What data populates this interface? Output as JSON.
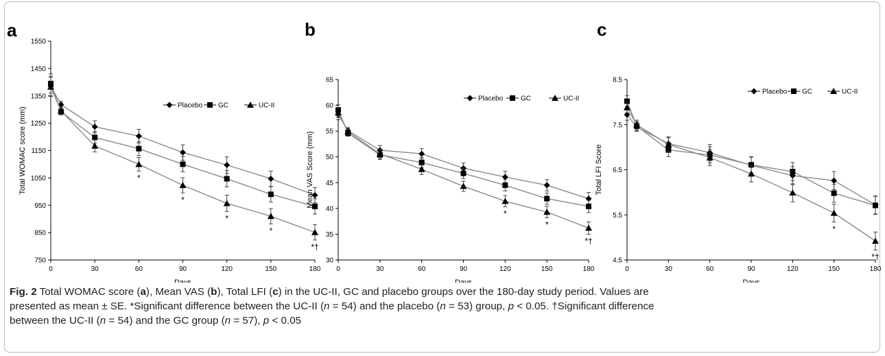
{
  "figure": {
    "caption_lines": [
      [
        "Fig. 2",
        " Total WOMAC score (",
        "a",
        "), Mean VAS (",
        "b",
        "), Total LFI (",
        "c",
        ") in the UC-II, GC and placebo groups over the 180-day study period. Values are"
      ],
      [
        "presented as mean ± SE. *Significant difference between the UC-II (",
        "n",
        " = 54) and the placebo (",
        "n",
        " = 53) group, ",
        "p",
        " < 0.05. †Significant difference"
      ],
      [
        "between the UC-II (",
        "n",
        " = 54) and the GC group (",
        "n",
        " = 57), ",
        "p",
        " < 0.05"
      ]
    ]
  },
  "chart_data": [
    {
      "panel_label": "a",
      "type": "line",
      "xlabel": "Days",
      "ylabel": "Total WOMAC score (mm)",
      "x": [
        0,
        7,
        30,
        60,
        90,
        120,
        150,
        180
      ],
      "xticks": [
        0,
        30,
        60,
        90,
        120,
        150,
        180
      ],
      "yticks": [
        750,
        850,
        950,
        1050,
        1150,
        1250,
        1350,
        1450,
        1550
      ],
      "ylim": [
        750,
        1550
      ],
      "legend_position": "top-right",
      "series": [
        {
          "name": "Placebo",
          "marker": "diamond",
          "values": [
            1385,
            1318,
            1237,
            1203,
            1143,
            1097,
            1047,
            987
          ],
          "errors": [
            35,
            12,
            22,
            25,
            28,
            30,
            28,
            28
          ]
        },
        {
          "name": "GC",
          "marker": "square",
          "values": [
            1395,
            1292,
            1198,
            1157,
            1100,
            1047,
            990,
            946
          ],
          "errors": [
            35,
            12,
            22,
            25,
            28,
            30,
            28,
            28
          ]
        },
        {
          "name": "UC-II",
          "marker": "triangle",
          "values": [
            1383,
            1295,
            1167,
            1100,
            1023,
            957,
            910,
            851
          ],
          "errors": [
            35,
            12,
            22,
            25,
            28,
            30,
            28,
            28
          ]
        }
      ],
      "annotations": [
        {
          "x": 60,
          "text": "*"
        },
        {
          "x": 90,
          "text": "*"
        },
        {
          "x": 120,
          "text": "*"
        },
        {
          "x": 150,
          "text": "*"
        },
        {
          "x": 180,
          "text": "*†"
        }
      ]
    },
    {
      "panel_label": "b",
      "type": "line",
      "xlabel": "Days",
      "ylabel": "Mean VAS Score (mm)",
      "x": [
        0,
        7,
        30,
        60,
        90,
        120,
        150,
        180
      ],
      "xticks": [
        0,
        30,
        60,
        90,
        120,
        150,
        180
      ],
      "yticks": [
        30,
        35,
        40,
        45,
        50,
        55,
        60,
        65
      ],
      "ylim": [
        30,
        65
      ],
      "legend_position": "top-right",
      "series": [
        {
          "name": "Placebo",
          "marker": "diamond",
          "values": [
            58.2,
            55.1,
            51.3,
            50.6,
            47.8,
            46.1,
            44.5,
            41.9
          ],
          "errors": [
            1.0,
            0.6,
            0.9,
            1.0,
            1.0,
            1.1,
            1.1,
            1.2
          ]
        },
        {
          "name": "GC",
          "marker": "square",
          "values": [
            59.1,
            54.6,
            50.4,
            48.9,
            46.8,
            44.5,
            41.9,
            40.4
          ],
          "errors": [
            1.0,
            0.6,
            0.9,
            1.0,
            1.0,
            1.1,
            1.1,
            1.2
          ]
        },
        {
          "name": "UC-II",
          "marker": "triangle",
          "values": [
            58.6,
            54.9,
            50.6,
            47.6,
            44.3,
            41.4,
            39.3,
            36.2
          ],
          "errors": [
            1.0,
            0.6,
            0.9,
            1.0,
            1.0,
            1.1,
            1.1,
            1.2
          ]
        }
      ],
      "annotations": [
        {
          "x": 120,
          "text": "*"
        },
        {
          "x": 150,
          "text": "*"
        },
        {
          "x": 180,
          "text": "*†"
        }
      ]
    },
    {
      "panel_label": "c",
      "type": "line",
      "xlabel": "Days",
      "ylabel": "Total LFI Score",
      "x": [
        0,
        7,
        30,
        60,
        90,
        120,
        150,
        180
      ],
      "xticks": [
        0,
        30,
        60,
        90,
        120,
        150,
        180
      ],
      "yticks": [
        4.5,
        5.5,
        6.5,
        7.5,
        8.5
      ],
      "ylim": [
        4.5,
        8.5
      ],
      "legend_position": "top-right",
      "series": [
        {
          "name": "Placebo",
          "marker": "diamond",
          "values": [
            7.72,
            7.45,
            7.08,
            6.88,
            6.6,
            6.37,
            6.26,
            5.72
          ],
          "errors": [
            0.12,
            0.1,
            0.15,
            0.18,
            0.18,
            0.2,
            0.2,
            0.2
          ]
        },
        {
          "name": "GC",
          "marker": "square",
          "values": [
            8.02,
            7.47,
            6.94,
            6.83,
            6.61,
            6.46,
            5.98,
            5.71
          ],
          "errors": [
            0.12,
            0.1,
            0.15,
            0.18,
            0.18,
            0.2,
            0.2,
            0.2
          ]
        },
        {
          "name": "UC-II",
          "marker": "triangle",
          "values": [
            7.88,
            7.5,
            7.06,
            6.77,
            6.41,
            5.99,
            5.54,
            4.92
          ],
          "errors": [
            0.12,
            0.1,
            0.15,
            0.18,
            0.18,
            0.2,
            0.2,
            0.2
          ]
        }
      ],
      "annotations": [
        {
          "x": 150,
          "text": "*"
        },
        {
          "x": 180,
          "text": "*†"
        }
      ]
    }
  ]
}
